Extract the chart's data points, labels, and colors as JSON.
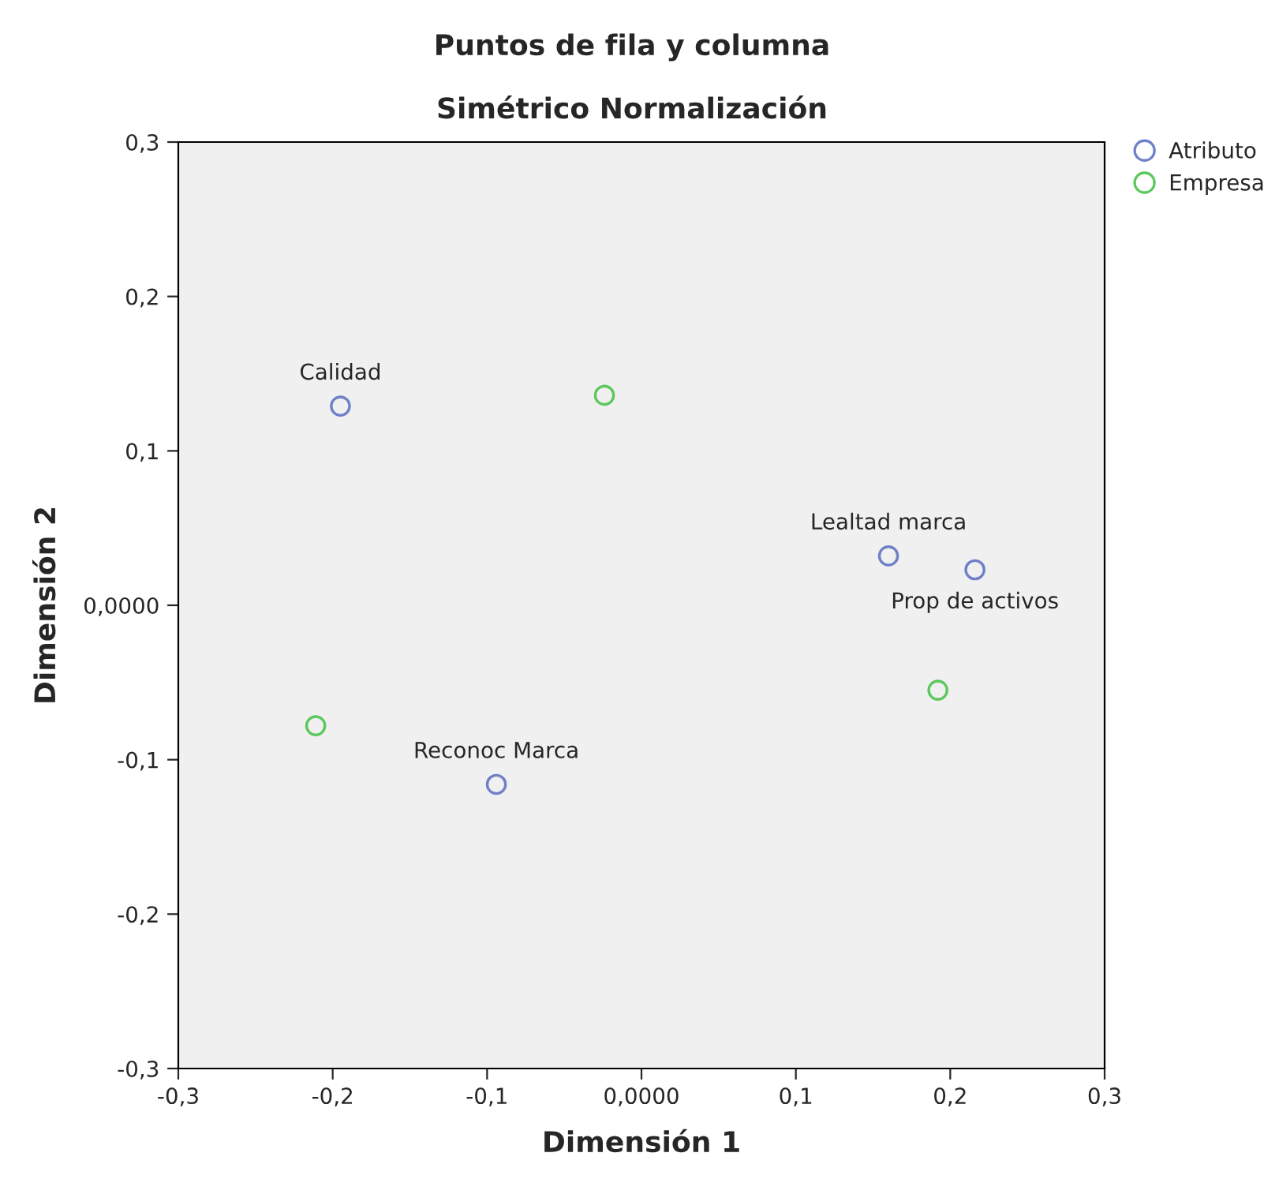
{
  "chart_data": {
    "type": "scatter",
    "title": "Puntos de fila y columna",
    "subtitle": "Simétrico Normalización",
    "xlabel": "Dimensión 1",
    "ylabel": "Dimensión 2",
    "series": [
      {
        "name": "Atributo",
        "color": "#6f80c8",
        "x": [
          -0.195,
          0.16,
          0.216,
          -0.094
        ],
        "values": [
          0.129,
          0.032,
          0.023,
          -0.116
        ]
      },
      {
        "name": "Empresa",
        "color": "#5cc85c",
        "x": [
          -0.024,
          0.192,
          -0.211
        ],
        "values": [
          0.136,
          -0.055,
          -0.078
        ]
      }
    ],
    "annotations": [
      {
        "text": "Calidad",
        "x": -0.195,
        "y": 0.129
      },
      {
        "text": "Lealtad marca",
        "x": 0.16,
        "y": 0.032
      },
      {
        "text": "Prop de activos",
        "x": 0.216,
        "y": 0.023
      },
      {
        "text": "Reconoc Marca",
        "x": -0.094,
        "y": -0.116
      }
    ],
    "xlim": [
      -0.3,
      0.3
    ],
    "ylim": [
      -0.3,
      0.3
    ],
    "xticks": [
      {
        "value": -0.3,
        "label": "-0,3"
      },
      {
        "value": -0.2,
        "label": "-0,2"
      },
      {
        "value": -0.1,
        "label": "-0,1"
      },
      {
        "value": 0,
        "label": "0,0000"
      },
      {
        "value": 0.1,
        "label": "0,1"
      },
      {
        "value": 0.2,
        "label": "0,2"
      },
      {
        "value": 0.3,
        "label": "0,3"
      }
    ],
    "yticks": [
      {
        "value": -0.3,
        "label": "-0,3"
      },
      {
        "value": -0.2,
        "label": "-0,2"
      },
      {
        "value": -0.1,
        "label": "-0,1"
      },
      {
        "value": 0,
        "label": "0,0000"
      },
      {
        "value": 0.1,
        "label": "0,1"
      },
      {
        "value": 0.2,
        "label": "0,2"
      },
      {
        "value": 0.3,
        "label": "0,3"
      }
    ],
    "marker": "circle",
    "legend": "top right",
    "grid": false
  }
}
